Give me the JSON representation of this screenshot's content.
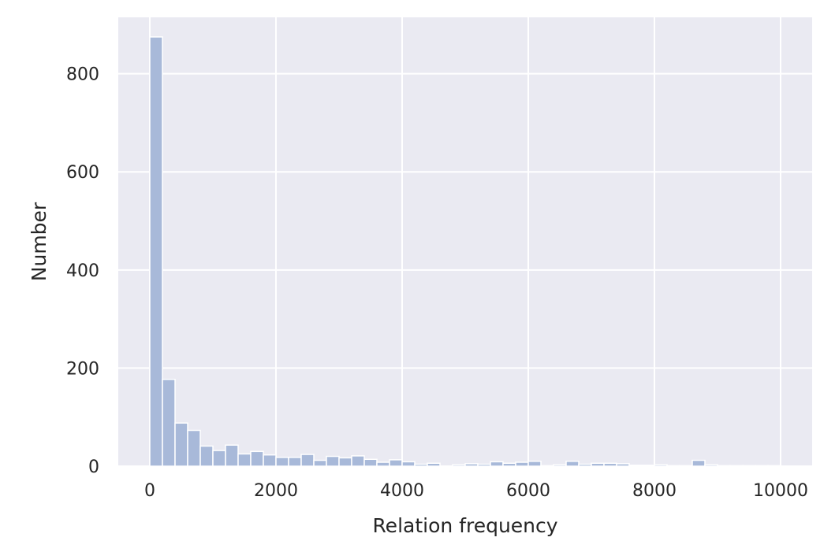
{
  "chart_data": {
    "type": "bar",
    "xlabel": "Relation frequency",
    "ylabel": "Number",
    "xlim": [
      -500,
      10500
    ],
    "ylim": [
      0,
      915
    ],
    "grid": true,
    "bin_width": 200,
    "x_ticks": [
      0,
      2000,
      4000,
      6000,
      8000,
      10000
    ],
    "x_tick_labels": [
      "0",
      "2000",
      "4000",
      "6000",
      "8000",
      "10000"
    ],
    "y_ticks": [
      0,
      200,
      400,
      600,
      800
    ],
    "y_tick_labels": [
      "0",
      "200",
      "400",
      "600",
      "800"
    ],
    "bin_starts": [
      0,
      200,
      400,
      600,
      800,
      1000,
      1200,
      1400,
      1600,
      1800,
      2000,
      2200,
      2400,
      2600,
      2800,
      3000,
      3200,
      3400,
      3600,
      3800,
      4000,
      4200,
      4400,
      4600,
      4800,
      5000,
      5200,
      5400,
      5600,
      5800,
      6000,
      6200,
      6400,
      6600,
      6800,
      7000,
      7200,
      7400,
      7600,
      7800,
      8000,
      8200,
      8400,
      8600,
      8800,
      9000,
      9200,
      9400,
      9600,
      9800
    ],
    "values": [
      875,
      177,
      88,
      73,
      41,
      32,
      43,
      25,
      30,
      23,
      18,
      18,
      24,
      12,
      20,
      17,
      21,
      14,
      8,
      13,
      9,
      4,
      6,
      0,
      3,
      5,
      4,
      9,
      6,
      8,
      10,
      1,
      3,
      10,
      4,
      6,
      6,
      5,
      2,
      2,
      3,
      1,
      1,
      12,
      3,
      1,
      1,
      1,
      1,
      1
    ],
    "colors": {
      "background": "#eaeaf2",
      "bar": "#a8b9d9",
      "grid": "#ffffff",
      "text": "#262626"
    }
  }
}
